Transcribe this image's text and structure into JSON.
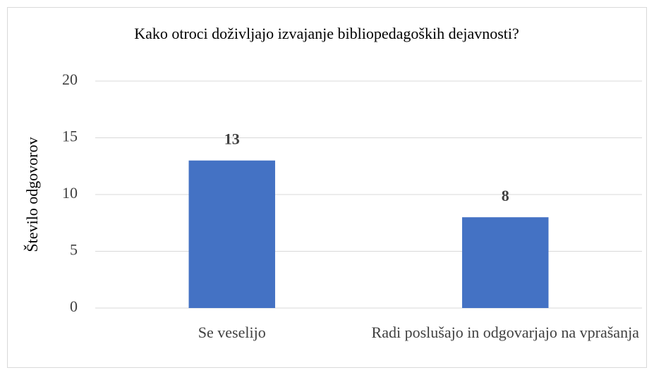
{
  "chart_data": {
    "type": "bar",
    "title": "Kako otroci doživljajo izvajanje bibliopedagoških dejavnosti?",
    "y_label": "Število odgovorov",
    "categories": [
      "Se veselijo",
      "Radi poslušajo in odgovarjajo na vprašanja"
    ],
    "values": [
      13,
      8
    ],
    "color": "#4472c4",
    "ylim": [
      0,
      20
    ],
    "yticks": [
      0,
      5,
      10,
      15,
      20
    ],
    "grid": true
  }
}
